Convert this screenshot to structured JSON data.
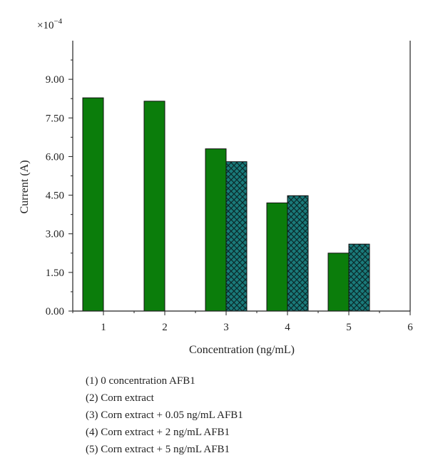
{
  "chart_data": {
    "type": "bar",
    "title": "",
    "multiplier_label": "×10",
    "multiplier_exponent": "−4",
    "xlabel": "Concentration (ng/mL)",
    "ylabel": "Current (A)",
    "xlim": [
      0.5,
      6
    ],
    "ylim": [
      0,
      10.5
    ],
    "x_ticks": [
      "1",
      "2",
      "3",
      "4",
      "5",
      "6"
    ],
    "y_ticks": [
      "0.00",
      "1.50",
      "3.00",
      "4.50",
      "6.00",
      "7.50",
      "9.00"
    ],
    "categories": [
      1,
      2,
      3,
      4,
      5
    ],
    "series": [
      {
        "values": [
          8.28,
          8.15,
          6.3,
          4.2,
          2.25
        ],
        "color": "#0b7d0b",
        "pattern": "solid"
      },
      {
        "values": [
          null,
          null,
          5.8,
          4.48,
          2.6
        ],
        "color": "#1a7a7a",
        "pattern": "crosshatch"
      }
    ],
    "grid": false
  },
  "legend": {
    "items": [
      "(1) 0 concentration AFB1",
      "(2) Corn extract",
      "(3) Corn extract + 0.05 ng/mL AFB1",
      "(4) Corn extract + 2 ng/mL AFB1",
      "(5) Corn extract + 5 ng/mL AFB1"
    ]
  }
}
